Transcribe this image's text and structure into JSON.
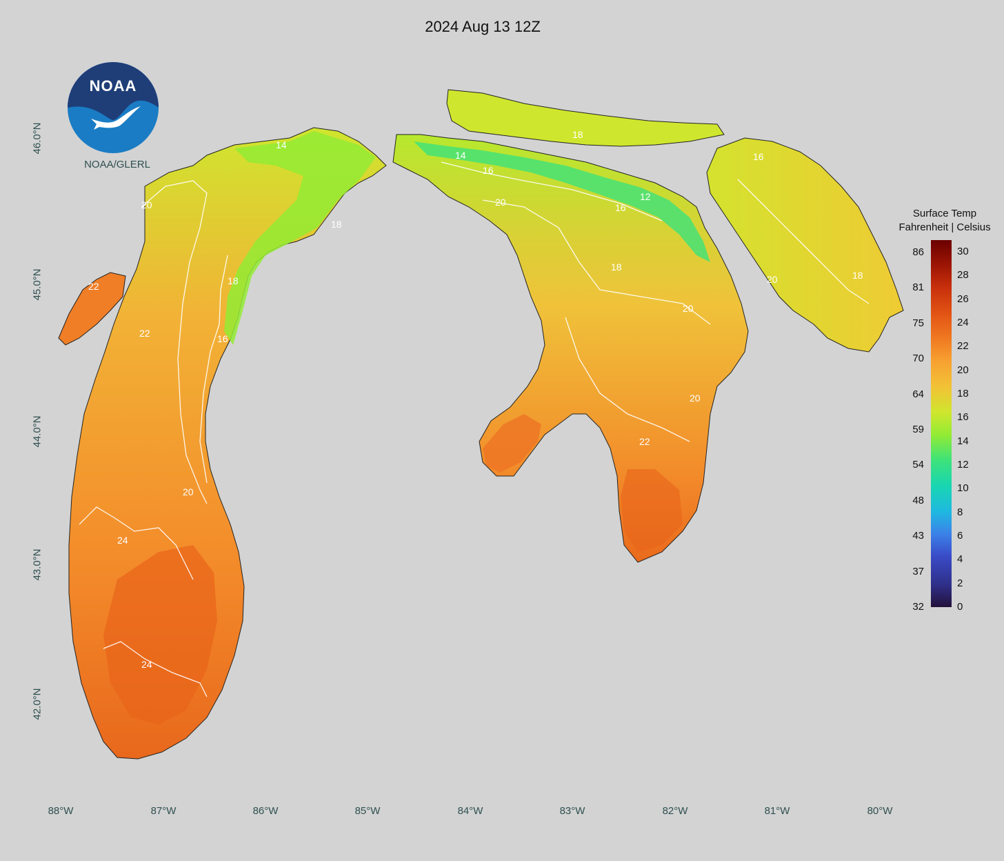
{
  "map": {
    "title": "2024 Aug 13 12Z",
    "latitude_labels": [
      "46.0°N",
      "45.0°N",
      "44.0°N",
      "43.0°N",
      "42.0°N"
    ],
    "longitude_labels": [
      "88°W",
      "87°W",
      "86°W",
      "85°W",
      "84°W",
      "83°W",
      "82°W",
      "81°W",
      "80°W"
    ],
    "contour_labels": [
      "14",
      "16",
      "18",
      "20",
      "22",
      "24",
      "12"
    ],
    "background_color": "#d3d3d3"
  },
  "legend": {
    "title_line1": "Surface Temp",
    "title_line2": "Fahrenheit | Celsius",
    "fahrenheit_ticks": [
      "86",
      "81",
      "75",
      "70",
      "64",
      "59",
      "54",
      "48",
      "43",
      "37",
      "32"
    ],
    "celsius_ticks": [
      "30",
      "28",
      "26",
      "24",
      "22",
      "20",
      "18",
      "16",
      "14",
      "12",
      "10",
      "8",
      "6",
      "4",
      "2",
      "0"
    ],
    "celsius_range": [
      0,
      31
    ]
  },
  "logo": {
    "text": "NOAA",
    "caption": "NOAA/GLERL",
    "icon": "noaa-seagull-logo",
    "colors": {
      "dark": "#1f3e78",
      "light": "#1a7cc4"
    }
  },
  "colors": {
    "cold": "#18d6b2",
    "cool": "#93eb34",
    "mild": "#cfe62e",
    "warm": "#f7a131",
    "hot": "#e25314"
  }
}
